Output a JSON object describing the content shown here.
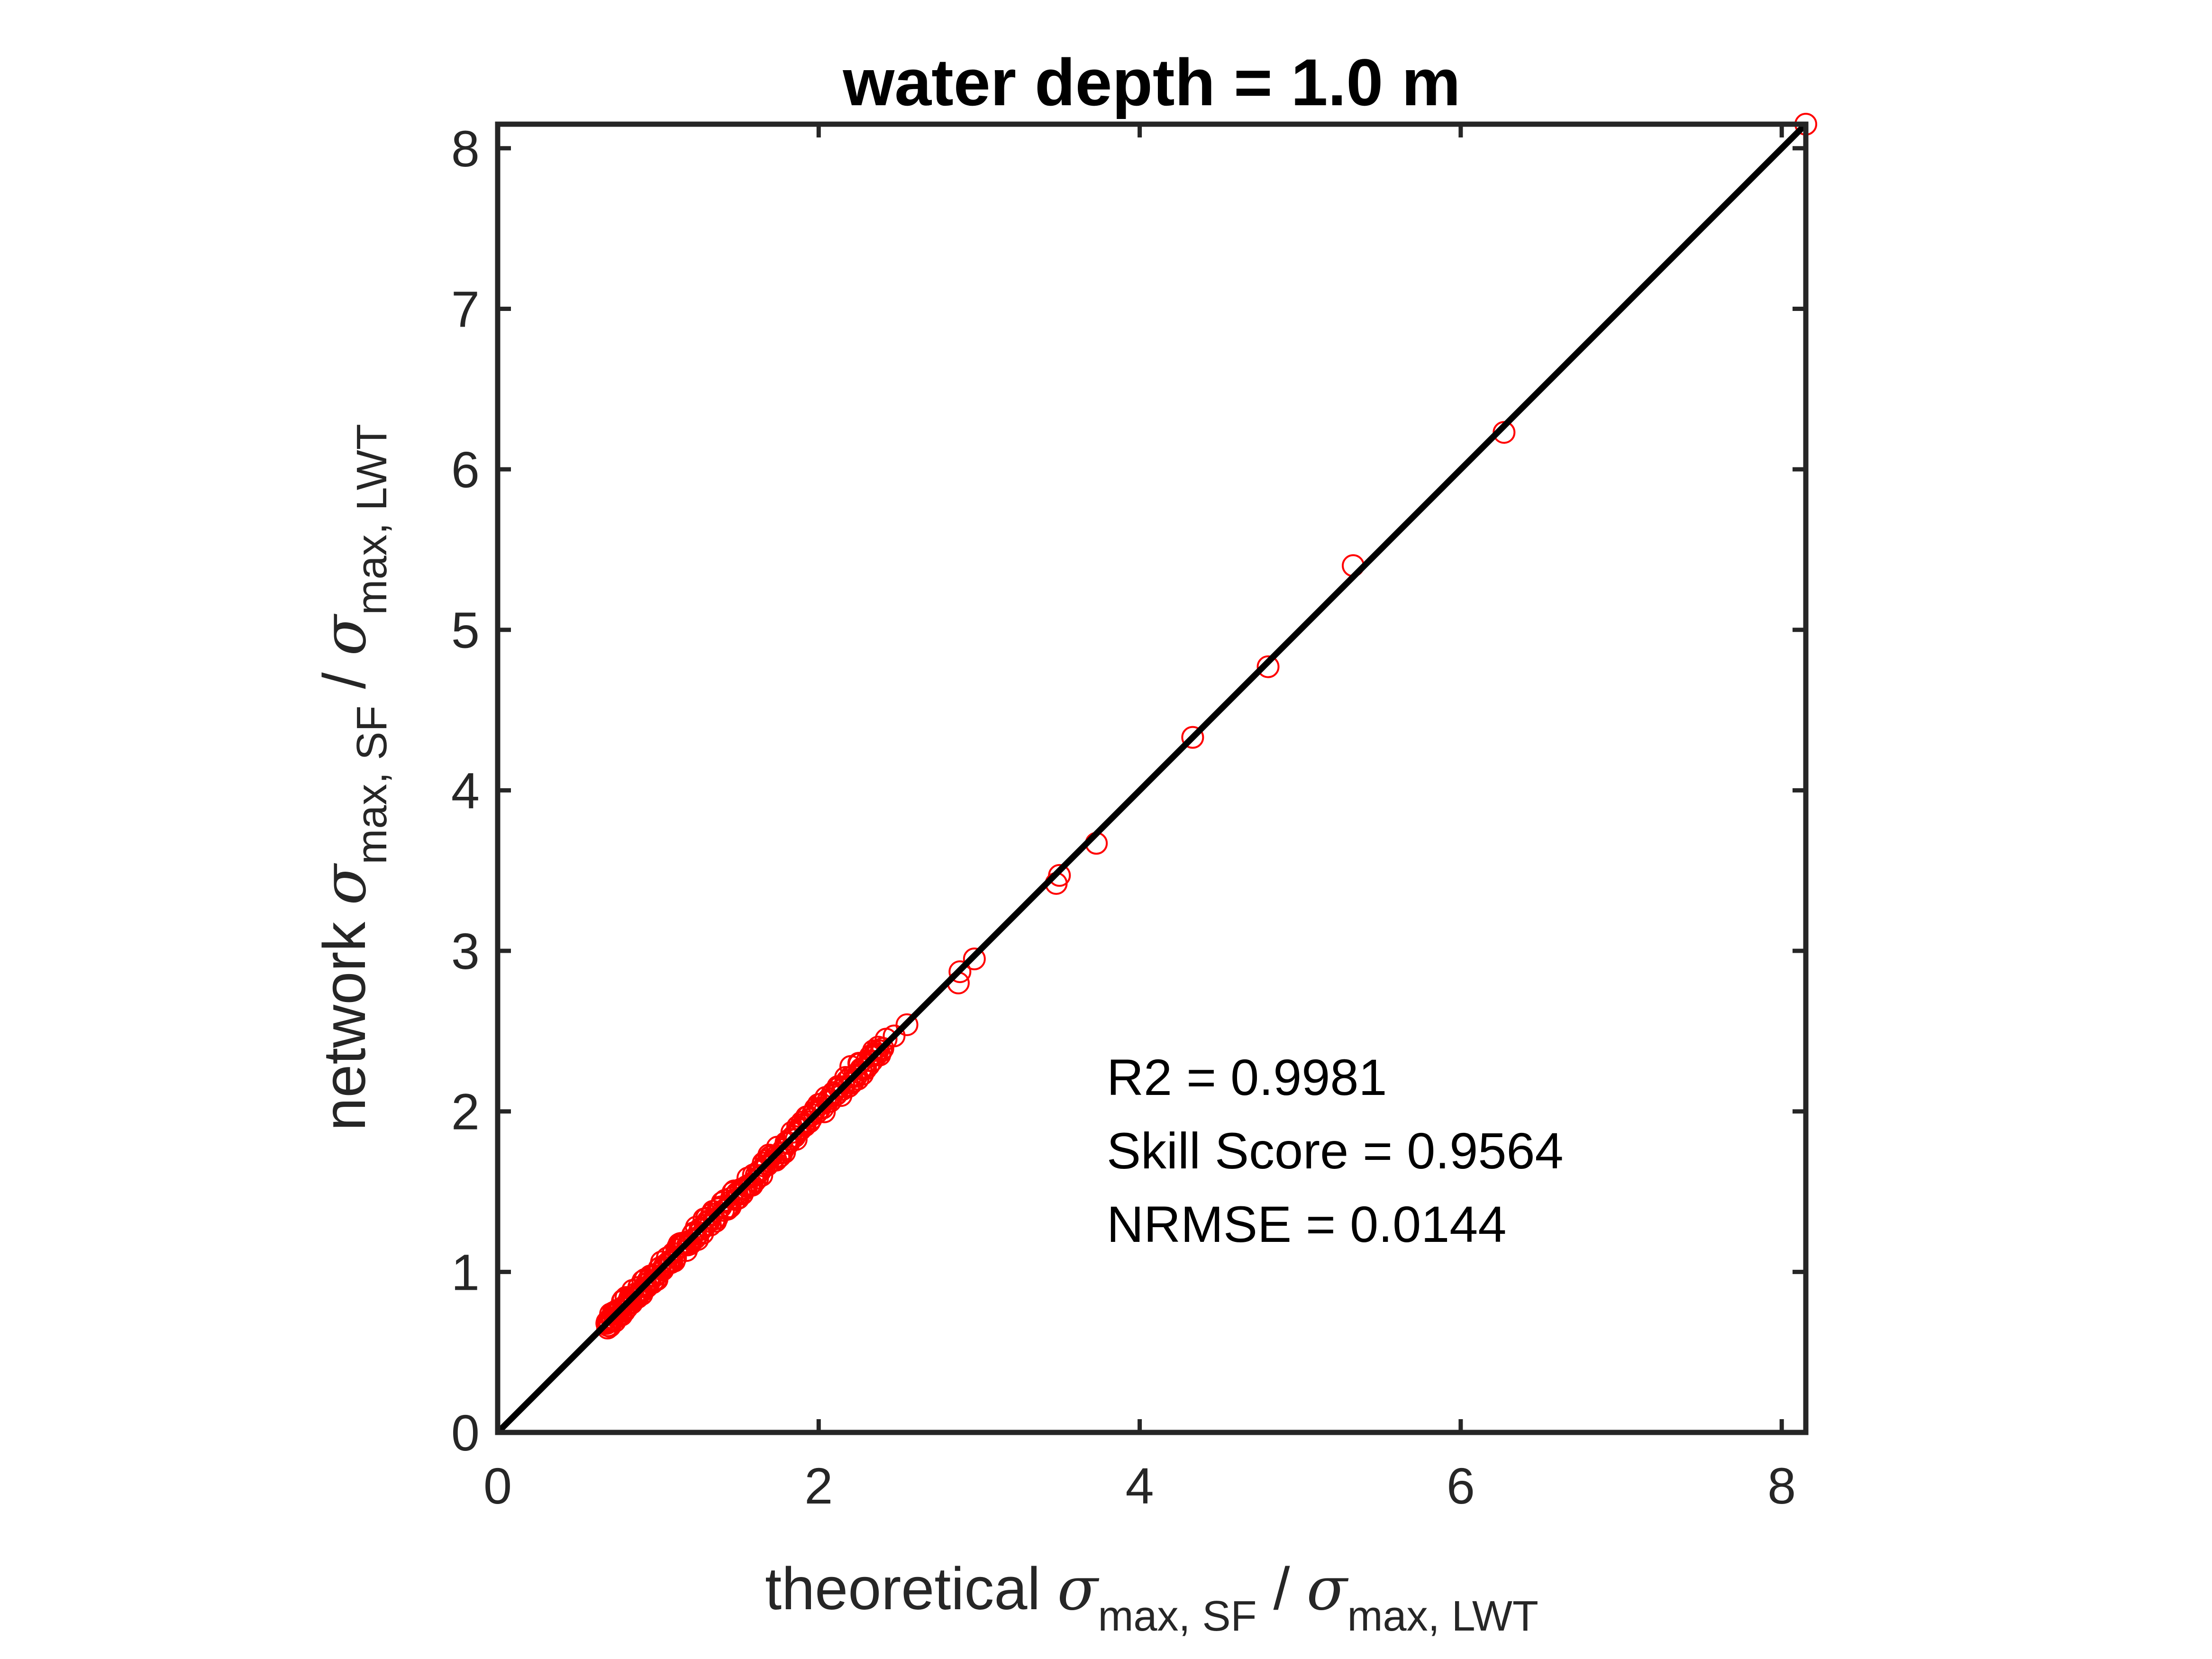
{
  "chart_data": {
    "type": "scatter",
    "title": "water depth = 1.0 m",
    "xlabel": {
      "prefix": "theoretical ",
      "sigma": "σ",
      "sub1": "max, SF",
      "slash": " / ",
      "sub2": "max, LWT"
    },
    "ylabel": {
      "prefix": "network ",
      "sigma": "σ",
      "sub1": "max, SF",
      "slash": " / ",
      "sub2": "max, LWT"
    },
    "xlim": [
      0,
      8.15
    ],
    "ylim": [
      0,
      8.15
    ],
    "xticks": [
      0,
      2,
      4,
      6,
      8
    ],
    "yticks": [
      0,
      1,
      2,
      3,
      4,
      5,
      6,
      7,
      8
    ],
    "grid": false,
    "reference_line": {
      "x": [
        0,
        8.15
      ],
      "y": [
        0,
        8.15
      ]
    },
    "annotations": [
      "R2 = 0.9981",
      "Skill Score = 0.9564",
      "NRMSE = 0.0144"
    ],
    "outliers": [
      [
        8.15,
        8.15
      ],
      [
        6.27,
        6.23
      ],
      [
        5.33,
        5.4
      ],
      [
        4.8,
        4.77
      ],
      [
        4.33,
        4.33
      ],
      [
        3.73,
        3.67
      ],
      [
        3.5,
        3.47
      ],
      [
        3.48,
        3.42
      ],
      [
        2.97,
        2.95
      ],
      [
        2.88,
        2.87
      ],
      [
        2.87,
        2.8
      ],
      [
        2.55,
        2.54
      ],
      [
        2.47,
        2.47
      ],
      [
        2.42,
        2.45
      ],
      [
        2.37,
        2.38
      ],
      [
        2.33,
        2.35
      ],
      [
        2.28,
        2.27
      ],
      [
        2.2,
        2.28
      ],
      [
        2.25,
        2.3
      ]
    ],
    "cluster": {
      "x_range": [
        0.68,
        2.4
      ],
      "count": 220,
      "spread": 0.045
    },
    "colors": {
      "markers": "#ff0000",
      "line": "#000000",
      "axes": "#262626"
    }
  }
}
